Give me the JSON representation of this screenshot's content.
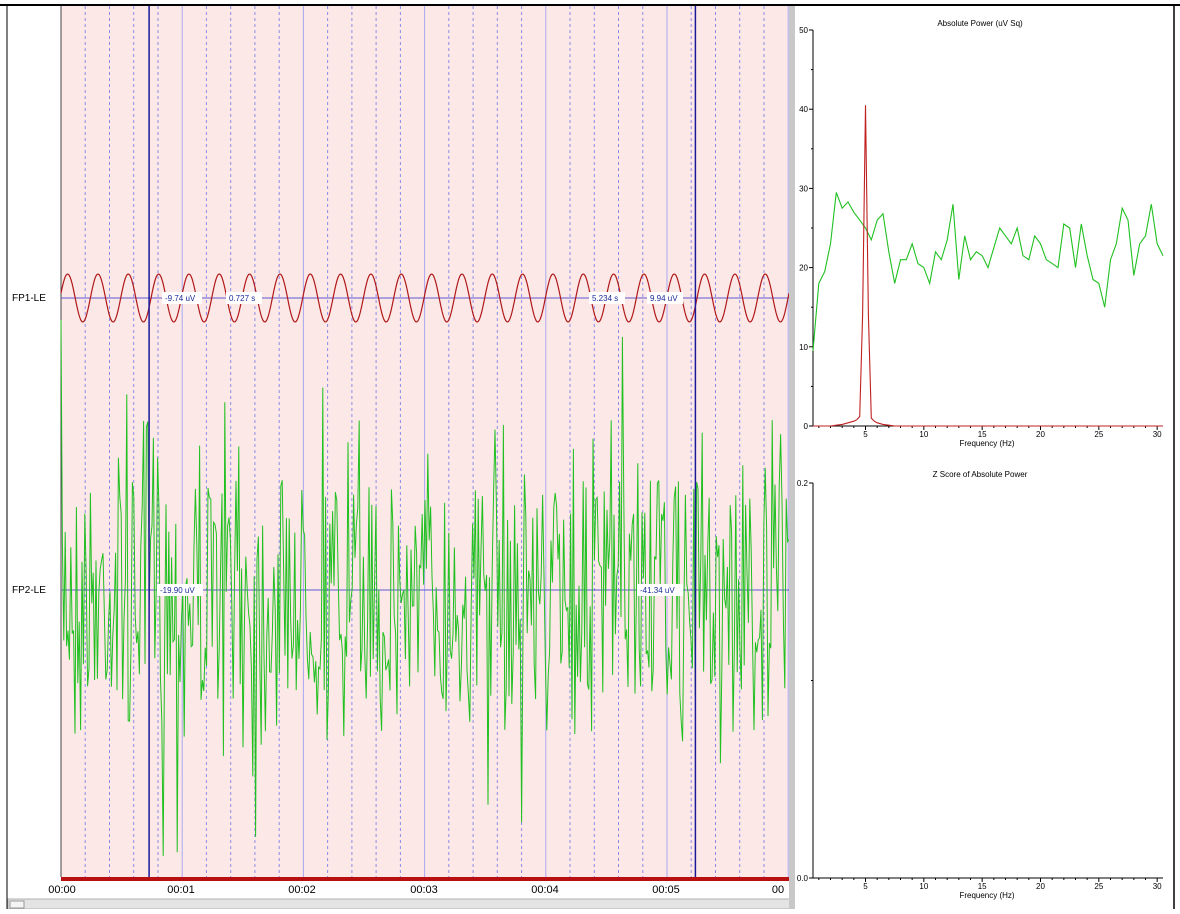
{
  "eeg": {
    "channels": [
      {
        "name": "FP1-LE",
        "color": "#b01818"
      },
      {
        "name": "FP2-LE",
        "color": "#20c020"
      }
    ],
    "cursor1": {
      "time_s": 0.727,
      "fp1_readout": "-9.74 uV",
      "time_readout": "0.727 s",
      "fp2_readout": "-19.90 uV"
    },
    "cursor2": {
      "time_s": 5.234,
      "time_readout": "5.234 s",
      "fp1_readout": "9.94 uV",
      "fp2_readout": "-41.34 uV"
    },
    "time_axis": [
      "00:00",
      "00:01",
      "00:02",
      "00:03",
      "00:04",
      "00:05",
      "00"
    ],
    "background_color": "#fde8e8",
    "trace_cycles_visible": 24
  },
  "chart_data": [
    {
      "type": "line",
      "title": "Absolute Power (uV Sq)",
      "xlabel": "Frequency (Hz)",
      "ylabel": "",
      "xlim": [
        0.5,
        30.5
      ],
      "ylim": [
        0,
        50
      ],
      "x_ticks": [
        "5",
        "10",
        "15",
        "20",
        "25",
        "30"
      ],
      "y_ticks": [
        "0",
        "10",
        "20",
        "30",
        "40",
        "50"
      ],
      "series": [
        {
          "color": "#20c020",
          "x": [
            0.5,
            1,
            1.5,
            2,
            2.5,
            3,
            3.5,
            4,
            4.5,
            5,
            5.5,
            6,
            6.5,
            7,
            7.5,
            8,
            8.5,
            9,
            9.5,
            10,
            10.5,
            11,
            11.5,
            12,
            12.5,
            13,
            13.5,
            14,
            14.5,
            15,
            15.5,
            16,
            16.5,
            17,
            17.5,
            18,
            18.5,
            19,
            19.5,
            20,
            20.5,
            21,
            21.5,
            22,
            22.5,
            23,
            23.5,
            24,
            24.5,
            25,
            25.5,
            26,
            26.5,
            27,
            27.5,
            28,
            28.5,
            29,
            29.5,
            30,
            30.5
          ],
          "y": [
            9.5,
            18,
            19.5,
            23,
            29.5,
            27.5,
            28.3,
            27,
            26,
            25,
            23.5,
            26,
            26.8,
            22,
            18,
            21,
            21,
            23,
            20.5,
            20,
            18,
            22,
            21,
            23.5,
            28,
            18.5,
            24,
            21,
            22,
            21.5,
            20,
            22.5,
            25,
            24,
            23,
            25,
            21.5,
            21,
            24,
            23,
            21,
            20.5,
            20,
            25.5,
            25,
            20,
            25.5,
            21.5,
            18.5,
            18,
            15,
            21,
            23,
            27.5,
            26,
            19,
            23,
            24,
            28,
            23,
            21.5
          ]
        },
        {
          "color": "#c02020",
          "x": [
            0.5,
            1,
            1.5,
            2,
            2.5,
            3,
            3.5,
            4,
            4.25,
            4.5,
            4.75,
            5,
            5.25,
            5.5,
            5.75,
            6,
            6.5,
            7,
            7.5,
            8,
            8.5,
            9,
            10,
            11,
            12,
            13,
            14,
            15,
            16,
            17,
            18,
            19,
            20,
            21,
            22,
            23,
            24,
            25,
            26,
            27,
            28,
            29,
            30,
            30.5
          ],
          "y": [
            0,
            0,
            0,
            0,
            0.1,
            0.2,
            0.4,
            0.6,
            0.8,
            1.2,
            14,
            40.5,
            14,
            1.0,
            0.6,
            0.4,
            0.2,
            0.1,
            0,
            0,
            0,
            0,
            0,
            0,
            0,
            0,
            0,
            0,
            0,
            0,
            0,
            0,
            0,
            0,
            0,
            0,
            0,
            0,
            0,
            0,
            0,
            0,
            0,
            0
          ]
        }
      ]
    },
    {
      "type": "line",
      "title": "Z Score of Absolute Power",
      "xlabel": "Frequency (Hz)",
      "ylabel": "",
      "xlim": [
        0.5,
        30.5
      ],
      "ylim": [
        0,
        0.2
      ],
      "x_ticks": [
        "5",
        "10",
        "15",
        "20",
        "25",
        "30"
      ],
      "y_ticks": [
        "0.0",
        "0.2"
      ],
      "series": []
    }
  ]
}
